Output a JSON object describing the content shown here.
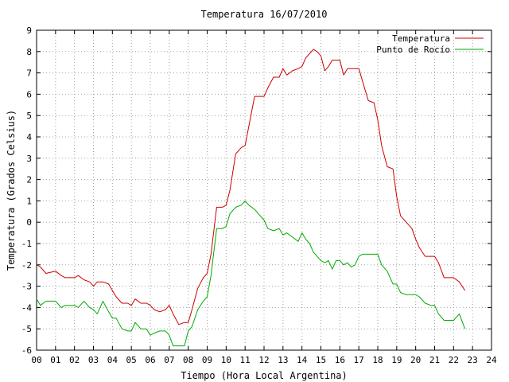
{
  "chart_data": {
    "type": "line",
    "title": "Temperatura 16/07/2010",
    "xlabel": "Tiempo (Hora Local Argentina)",
    "ylabel": "Temperatura (Grados Celsius)",
    "xlim": [
      0,
      24
    ],
    "ylim": [
      -6,
      9
    ],
    "xticks": [
      "00",
      "01",
      "02",
      "03",
      "04",
      "05",
      "06",
      "07",
      "08",
      "09",
      "10",
      "11",
      "12",
      "13",
      "14",
      "15",
      "16",
      "17",
      "18",
      "19",
      "20",
      "21",
      "22",
      "23",
      "24"
    ],
    "yticks": [
      "9",
      "8",
      "7",
      "6",
      "5",
      "4",
      "3",
      "2",
      "1",
      "0",
      "-1",
      "-2",
      "-3",
      "-4",
      "-5",
      "-6"
    ],
    "grid": true,
    "legend_position": "top-right",
    "series": [
      {
        "name": "Temperatura",
        "color": "#cc0000",
        "x": [
          0,
          0.2,
          0.5,
          1.0,
          1.3,
          1.5,
          2.0,
          2.2,
          2.5,
          2.8,
          3.0,
          3.2,
          3.5,
          3.8,
          4.0,
          4.2,
          4.5,
          4.8,
          5.0,
          5.2,
          5.5,
          5.8,
          6.0,
          6.2,
          6.5,
          6.8,
          7.0,
          7.2,
          7.5,
          7.8,
          8.0,
          8.2,
          8.5,
          8.8,
          9.0,
          9.2,
          9.5,
          9.8,
          10.0,
          10.2,
          10.5,
          10.8,
          11.0,
          11.2,
          11.5,
          11.8,
          12.0,
          12.2,
          12.5,
          12.8,
          13.0,
          13.2,
          13.5,
          13.8,
          14.0,
          14.2,
          14.4,
          14.6,
          14.8,
          15.0,
          15.2,
          15.4,
          15.6,
          15.8,
          16.0,
          16.2,
          16.4,
          16.6,
          16.8,
          17.0,
          17.2,
          17.5,
          17.8,
          18.0,
          18.2,
          18.5,
          18.8,
          19.0,
          19.2,
          19.5,
          19.8,
          20.0,
          20.2,
          20.5,
          20.8,
          21.0,
          21.2,
          21.5,
          21.8,
          22.0,
          22.3,
          22.6
        ],
        "values": [
          -2.0,
          -2.1,
          -2.4,
          -2.3,
          -2.5,
          -2.6,
          -2.6,
          -2.5,
          -2.7,
          -2.8,
          -3.0,
          -2.8,
          -2.8,
          -2.9,
          -3.2,
          -3.5,
          -3.8,
          -3.8,
          -3.9,
          -3.6,
          -3.8,
          -3.8,
          -3.9,
          -4.1,
          -4.2,
          -4.1,
          -3.9,
          -4.3,
          -4.8,
          -4.7,
          -4.7,
          -4.1,
          -3.1,
          -2.6,
          -2.4,
          -1.5,
          0.7,
          0.7,
          0.8,
          1.5,
          3.2,
          3.5,
          3.6,
          4.5,
          5.9,
          5.9,
          5.9,
          6.3,
          6.8,
          6.8,
          7.2,
          6.9,
          7.1,
          7.2,
          7.3,
          7.7,
          7.9,
          8.1,
          8.0,
          7.8,
          7.1,
          7.3,
          7.6,
          7.6,
          7.6,
          6.9,
          7.2,
          7.2,
          7.2,
          7.2,
          6.6,
          5.7,
          5.6,
          4.8,
          3.6,
          2.6,
          2.5,
          1.2,
          0.3,
          0.0,
          -0.3,
          -0.8,
          -1.2,
          -1.6,
          -1.6,
          -1.6,
          -1.9,
          -2.6,
          -2.6,
          -2.6,
          -2.8,
          -3.2
        ]
      },
      {
        "name": "Punto de Rocío",
        "color": "#00aa00",
        "x": [
          0,
          0.2,
          0.5,
          1.0,
          1.3,
          1.5,
          2.0,
          2.2,
          2.5,
          2.8,
          3.0,
          3.2,
          3.5,
          3.8,
          4.0,
          4.2,
          4.5,
          4.8,
          5.0,
          5.2,
          5.5,
          5.8,
          6.0,
          6.2,
          6.5,
          6.8,
          7.0,
          7.2,
          7.5,
          7.8,
          8.0,
          8.2,
          8.5,
          8.8,
          9.0,
          9.2,
          9.5,
          9.8,
          10.0,
          10.2,
          10.5,
          10.8,
          11.0,
          11.2,
          11.5,
          11.8,
          12.0,
          12.2,
          12.5,
          12.8,
          13.0,
          13.2,
          13.5,
          13.8,
          14.0,
          14.2,
          14.4,
          14.6,
          14.8,
          15.0,
          15.2,
          15.4,
          15.6,
          15.8,
          16.0,
          16.2,
          16.4,
          16.6,
          16.8,
          17.0,
          17.2,
          17.5,
          17.8,
          18.0,
          18.2,
          18.5,
          18.8,
          19.0,
          19.2,
          19.5,
          19.8,
          20.0,
          20.2,
          20.5,
          20.8,
          21.0,
          21.2,
          21.5,
          21.8,
          22.0,
          22.3,
          22.6
        ],
        "values": [
          -3.6,
          -3.9,
          -3.7,
          -3.7,
          -4.0,
          -3.9,
          -3.9,
          -4.0,
          -3.7,
          -4.0,
          -4.1,
          -4.3,
          -3.7,
          -4.2,
          -4.5,
          -4.5,
          -5.0,
          -5.1,
          -5.1,
          -4.7,
          -5.0,
          -5.0,
          -5.3,
          -5.2,
          -5.1,
          -5.1,
          -5.3,
          -5.8,
          -5.8,
          -5.8,
          -5.1,
          -4.9,
          -4.1,
          -3.7,
          -3.5,
          -2.5,
          -0.3,
          -0.3,
          -0.2,
          0.4,
          0.7,
          0.8,
          1.0,
          0.8,
          0.6,
          0.3,
          0.1,
          -0.3,
          -0.4,
          -0.3,
          -0.6,
          -0.5,
          -0.7,
          -0.9,
          -0.5,
          -0.8,
          -1.0,
          -1.4,
          -1.6,
          -1.8,
          -1.9,
          -1.8,
          -2.2,
          -1.8,
          -1.8,
          -2.0,
          -1.9,
          -2.1,
          -2.0,
          -1.6,
          -1.5,
          -1.5,
          -1.5,
          -1.5,
          -2.0,
          -2.3,
          -2.9,
          -2.9,
          -3.3,
          -3.4,
          -3.4,
          -3.4,
          -3.5,
          -3.8,
          -3.9,
          -3.9,
          -4.3,
          -4.6,
          -4.6,
          -4.6,
          -4.3,
          -5.0
        ]
      }
    ]
  }
}
